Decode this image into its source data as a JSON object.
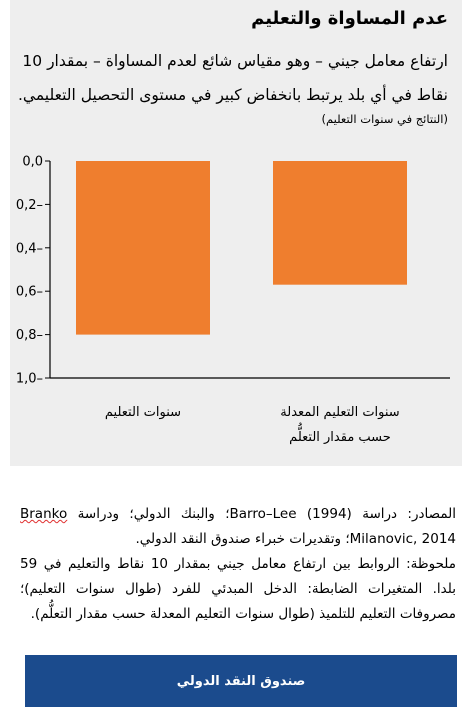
{
  "title": "عدم المساواة والتعليم",
  "subtitle": "ارتفاع معامل جيني – وهو مقياس شائع لعدم المساواة – بمقدار 10 نقاط في أي بلد يرتبط بانخفاض كبير في مستوى التحصيل التعليمي.",
  "unit_note": "(النتائج في سنوات التعليم)",
  "chart_data": {
    "type": "bar",
    "categories": [
      "سنوات التعليم",
      "سنوات التعليم المعدلة حسب مقدار التعلُّم"
    ],
    "category_lines": [
      [
        "سنوات التعليم"
      ],
      [
        "سنوات التعليم المعدلة",
        "حسب مقدار التعلُّم"
      ]
    ],
    "values": [
      -0.8,
      -0.57
    ],
    "ylim": [
      -1.0,
      0.0
    ],
    "yticks": [
      0.0,
      -0.2,
      -0.4,
      -0.6,
      -0.8,
      -1.0
    ],
    "ytick_labels": [
      "0,0",
      "0,2–",
      "0,4–",
      "0,6–",
      "0,8–",
      "1,0–"
    ],
    "y_inverted": true,
    "bar_color": "#ef7e2e",
    "title": "عدم المساواة والتعليم",
    "xlabel": "",
    "ylabel": ""
  },
  "sources": {
    "line1_pre": "المصادر: دراسة Barro–Lee (1994)؛ والبنك الدولي؛ ودراسة",
    "line1_name": "Branko",
    "line2": "Milanovic, 2014؛ وتقديرات خبراء صندوق النقد الدولي.",
    "note": "ملحوظة: الروابط بين ارتفاع معامل جيني بمقدار 10 نقاط والتعليم في 59 بلدا. المتغيرات الضابطة: الدخل المبدئي للفرد (طوال سنوات التعليم)؛ مصروفات التعليم للتلميذ (طوال سنوات التعليم المعدلة حسب مقدار التعلُّم)."
  },
  "footer": {
    "label": "صندوق النقد الدولي"
  },
  "colors": {
    "panel": "#eeeeee",
    "bar": "#ef7e2e",
    "brand_blue": "#1b4b8d"
  }
}
